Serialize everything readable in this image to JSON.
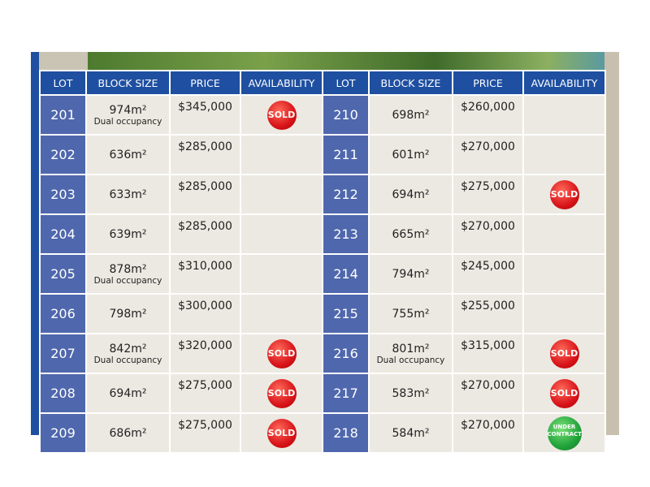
{
  "headers": [
    "LOT",
    "BLOCK SIZE",
    "PRICE",
    "AVAILABILITY",
    "LOT",
    "BLOCK SIZE",
    "PRICE",
    "AVAILABILITY"
  ],
  "colors": {
    "header": "#1f4fa0",
    "lot_cell": "#4f67ad",
    "cell": "#ece9e2",
    "sold": "#d8141a",
    "under_contract": "#21a33a"
  },
  "left": [
    {
      "lot": "201",
      "size": "974m²",
      "note": "Dual occupancy",
      "price": "$345,000",
      "status": "SOLD"
    },
    {
      "lot": "202",
      "size": "636m²",
      "note": "",
      "price": "$285,000",
      "status": ""
    },
    {
      "lot": "203",
      "size": "633m²",
      "note": "",
      "price": "$285,000",
      "status": ""
    },
    {
      "lot": "204",
      "size": "639m²",
      "note": "",
      "price": "$285,000",
      "status": ""
    },
    {
      "lot": "205",
      "size": "878m²",
      "note": "Dual occupancy",
      "price": "$310,000",
      "status": ""
    },
    {
      "lot": "206",
      "size": "798m²",
      "note": "",
      "price": "$300,000",
      "status": ""
    },
    {
      "lot": "207",
      "size": "842m²",
      "note": "Dual occupancy",
      "price": "$320,000",
      "status": "SOLD"
    },
    {
      "lot": "208",
      "size": "694m²",
      "note": "",
      "price": "$275,000",
      "status": "SOLD"
    },
    {
      "lot": "209",
      "size": "686m²",
      "note": "",
      "price": "$275,000",
      "status": "SOLD"
    }
  ],
  "right": [
    {
      "lot": "210",
      "size": "698m²",
      "note": "",
      "price": "$260,000",
      "status": ""
    },
    {
      "lot": "211",
      "size": "601m²",
      "note": "",
      "price": "$270,000",
      "status": ""
    },
    {
      "lot": "212",
      "size": "694m²",
      "note": "",
      "price": "$275,000",
      "status": "SOLD"
    },
    {
      "lot": "213",
      "size": "665m²",
      "note": "",
      "price": "$270,000",
      "status": ""
    },
    {
      "lot": "214",
      "size": "794m²",
      "note": "",
      "price": "$245,000",
      "status": ""
    },
    {
      "lot": "215",
      "size": "755m²",
      "note": "",
      "price": "$255,000",
      "status": ""
    },
    {
      "lot": "216",
      "size": "801m²",
      "note": "Dual occupancy",
      "price": "$315,000",
      "status": "SOLD"
    },
    {
      "lot": "217",
      "size": "583m²",
      "note": "",
      "price": "$270,000",
      "status": "SOLD"
    },
    {
      "lot": "218",
      "size": "584m²",
      "note": "",
      "price": "$270,000",
      "status": "UNDER CONTRACT"
    }
  ]
}
